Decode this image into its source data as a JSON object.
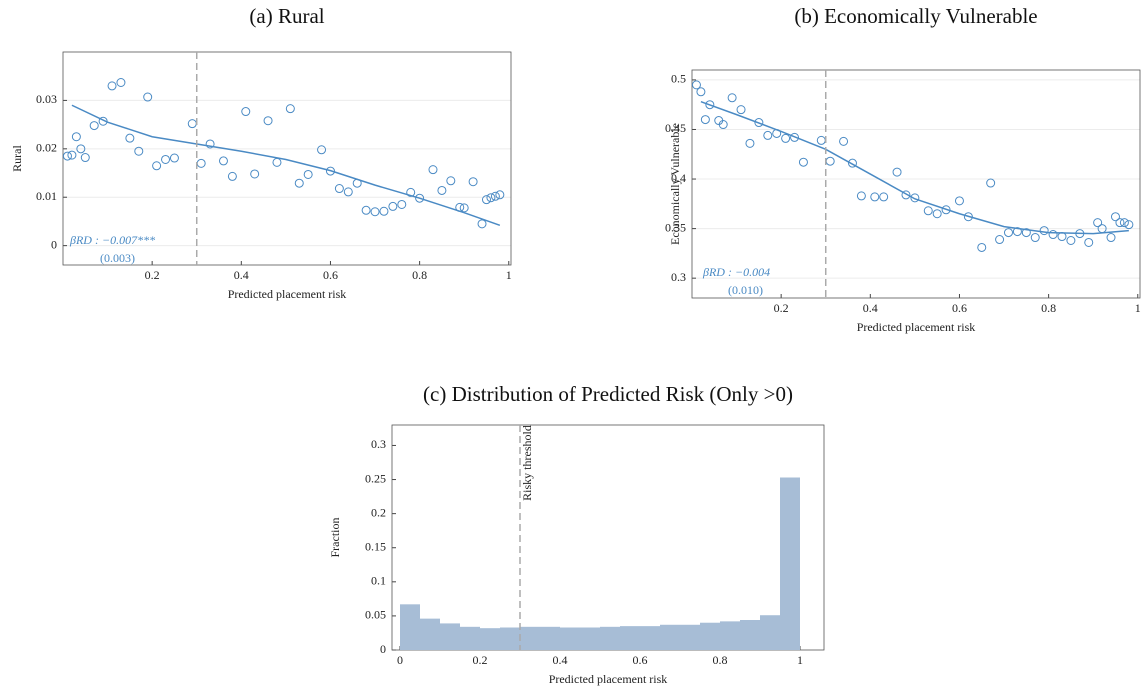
{
  "chart_data": [
    {
      "type": "scatter",
      "title": "(a) Rural",
      "xlabel": "Predicted placement risk",
      "ylabel": "Rural",
      "color": "#4a8ac4",
      "grid": true,
      "threshold": 0.3,
      "xlim": [
        0,
        1.005
      ],
      "xticks": [
        0.2,
        0.4,
        0.6,
        0.8,
        1
      ],
      "ylim": [
        -0.004,
        0.04
      ],
      "yticks": [
        0,
        0.01,
        0.02,
        0.03
      ],
      "x": [
        0.01,
        0.02,
        0.03,
        0.04,
        0.05,
        0.07,
        0.09,
        0.11,
        0.13,
        0.15,
        0.17,
        0.19,
        0.21,
        0.23,
        0.25,
        0.29,
        0.31,
        0.33,
        0.36,
        0.38,
        0.41,
        0.43,
        0.46,
        0.48,
        0.51,
        0.53,
        0.55,
        0.58,
        0.6,
        0.62,
        0.64,
        0.66,
        0.68,
        0.7,
        0.72,
        0.74,
        0.76,
        0.78,
        0.8,
        0.83,
        0.85,
        0.87,
        0.89,
        0.9,
        0.92,
        0.94,
        0.95,
        0.96,
        0.97,
        0.98
      ],
      "values": [
        0.0185,
        0.0187,
        0.0225,
        0.02,
        0.0182,
        0.0248,
        0.0257,
        0.033,
        0.0337,
        0.0222,
        0.0195,
        0.0307,
        0.0165,
        0.0178,
        0.0181,
        0.0252,
        0.017,
        0.021,
        0.0175,
        0.0143,
        0.0277,
        0.0148,
        0.0258,
        0.0172,
        0.0283,
        0.0129,
        0.0147,
        0.0198,
        0.0154,
        0.0118,
        0.0111,
        0.0129,
        0.0073,
        0.007,
        0.0071,
        0.0081,
        0.0085,
        0.011,
        0.0098,
        0.0157,
        0.0114,
        0.0134,
        0.0079,
        0.0078,
        0.0132,
        0.0045,
        0.0095,
        0.0099,
        0.0102,
        0.0105
      ],
      "fit": {
        "x": [
          0.02,
          0.1,
          0.2,
          0.3,
          0.4,
          0.5,
          0.6,
          0.7,
          0.8,
          0.9,
          0.98
        ],
        "values": [
          0.029,
          0.0255,
          0.0225,
          0.021,
          0.0195,
          0.0178,
          0.0155,
          0.0125,
          0.0098,
          0.0068,
          0.0042
        ]
      },
      "annotations": [
        "βRD : −0.007***",
        "(0.003)"
      ]
    },
    {
      "type": "scatter",
      "title": "(b) Economically Vulnerable",
      "xlabel": "Predicted placement risk",
      "ylabel": "Economically Vulnerable",
      "color": "#4a8ac4",
      "grid": true,
      "threshold": 0.3,
      "xlim": [
        0,
        1.005
      ],
      "xticks": [
        0.2,
        0.4,
        0.6,
        0.8,
        1
      ],
      "ylim": [
        0.28,
        0.51
      ],
      "yticks": [
        0.3,
        0.35,
        0.4,
        0.45,
        0.5
      ],
      "x": [
        0.01,
        0.02,
        0.03,
        0.04,
        0.06,
        0.07,
        0.09,
        0.11,
        0.13,
        0.15,
        0.17,
        0.19,
        0.21,
        0.23,
        0.25,
        0.29,
        0.31,
        0.34,
        0.36,
        0.38,
        0.41,
        0.43,
        0.46,
        0.48,
        0.5,
        0.53,
        0.55,
        0.57,
        0.6,
        0.62,
        0.65,
        0.67,
        0.69,
        0.71,
        0.73,
        0.75,
        0.77,
        0.79,
        0.81,
        0.83,
        0.85,
        0.87,
        0.89,
        0.91,
        0.92,
        0.94,
        0.95,
        0.96,
        0.97,
        0.98
      ],
      "values": [
        0.495,
        0.488,
        0.46,
        0.475,
        0.459,
        0.455,
        0.482,
        0.47,
        0.436,
        0.457,
        0.444,
        0.446,
        0.441,
        0.442,
        0.417,
        0.439,
        0.418,
        0.438,
        0.416,
        0.383,
        0.382,
        0.382,
        0.407,
        0.384,
        0.381,
        0.368,
        0.365,
        0.369,
        0.378,
        0.362,
        0.331,
        0.396,
        0.339,
        0.346,
        0.347,
        0.346,
        0.341,
        0.348,
        0.344,
        0.342,
        0.338,
        0.345,
        0.336,
        0.356,
        0.35,
        0.341,
        0.362,
        0.356,
        0.356,
        0.354
      ],
      "fit": {
        "x": [
          0.02,
          0.1,
          0.2,
          0.3,
          0.4,
          0.5,
          0.6,
          0.7,
          0.8,
          0.9,
          0.98
        ],
        "values": [
          0.478,
          0.465,
          0.448,
          0.43,
          0.405,
          0.38,
          0.365,
          0.352,
          0.346,
          0.345,
          0.348
        ]
      },
      "annotations": [
        "βRD : −0.004",
        "(0.010)"
      ]
    },
    {
      "type": "histogram",
      "title": "(c) Distribution of Predicted Risk (Only >0)",
      "xlabel": "Predicted placement risk",
      "ylabel": "Fraction",
      "color": "#a7bdd6",
      "grid": false,
      "threshold": 0.3,
      "threshold_label": "Risky threshold",
      "xlim": [
        -0.02,
        1.06
      ],
      "xticks": [
        0,
        0.2,
        0.4,
        0.6,
        0.8,
        1
      ],
      "ylim": [
        0,
        0.33
      ],
      "yticks": [
        0,
        0.05,
        0.1,
        0.15,
        0.2,
        0.25,
        0.3
      ],
      "bins": [
        0,
        0.05,
        0.1,
        0.15,
        0.2,
        0.25,
        0.3,
        0.35,
        0.4,
        0.45,
        0.5,
        0.55,
        0.6,
        0.65,
        0.7,
        0.75,
        0.8,
        0.85,
        0.9,
        0.95,
        1
      ],
      "values": [
        0.067,
        0.046,
        0.039,
        0.034,
        0.032,
        0.033,
        0.034,
        0.034,
        0.033,
        0.033,
        0.034,
        0.035,
        0.035,
        0.037,
        0.037,
        0.04,
        0.042,
        0.044,
        0.051,
        0.253
      ]
    }
  ]
}
